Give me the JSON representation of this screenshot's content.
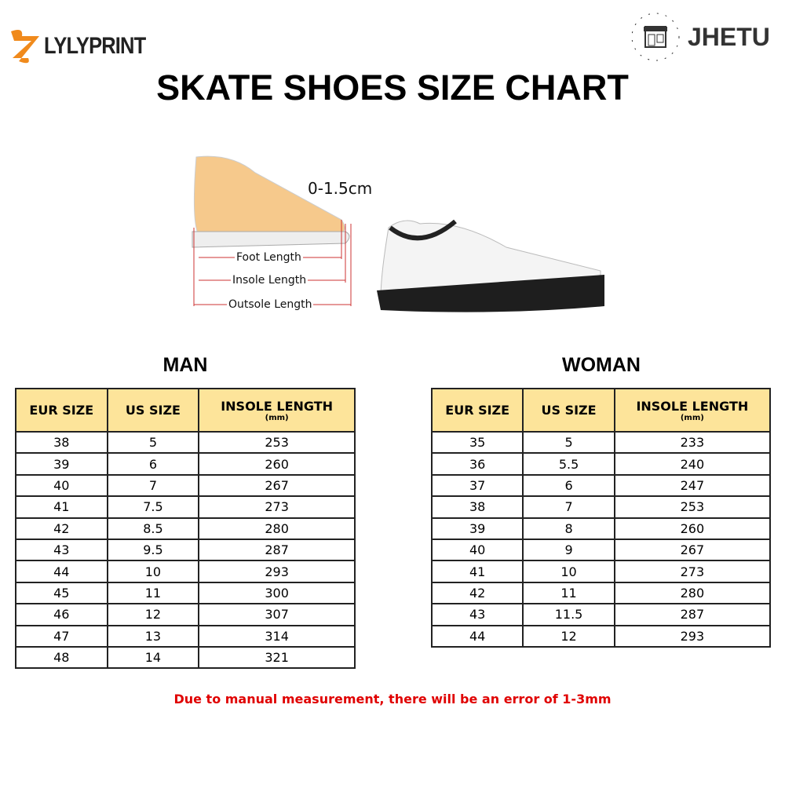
{
  "brand_left": "LYLYPRINT",
  "brand_right": "JHETU",
  "title": "SKATE SHOES SIZE CHART",
  "illustration": {
    "gap_label": "0-1.5cm",
    "foot_length": "Foot Length",
    "insole_length": "Insole Length",
    "outsole_length": "Outsole Length"
  },
  "colors": {
    "header_bg": "#FDE49A",
    "note": "#E00000",
    "logo_orange": "#F08A1C"
  },
  "man": {
    "title": "MAN",
    "headers": [
      "EUR SIZE",
      "US SIZE",
      "INSOLE LENGTH",
      "(mm)"
    ],
    "rows": [
      [
        "38",
        "5",
        "253"
      ],
      [
        "39",
        "6",
        "260"
      ],
      [
        "40",
        "7",
        "267"
      ],
      [
        "41",
        "7.5",
        "273"
      ],
      [
        "42",
        "8.5",
        "280"
      ],
      [
        "43",
        "9.5",
        "287"
      ],
      [
        "44",
        "10",
        "293"
      ],
      [
        "45",
        "11",
        "300"
      ],
      [
        "46",
        "12",
        "307"
      ],
      [
        "47",
        "13",
        "314"
      ],
      [
        "48",
        "14",
        "321"
      ]
    ]
  },
  "woman": {
    "title": "WOMAN",
    "headers": [
      "EUR SIZE",
      "US SIZE",
      "INSOLE LENGTH",
      "(mm)"
    ],
    "rows": [
      [
        "35",
        "5",
        "233"
      ],
      [
        "36",
        "5.5",
        "240"
      ],
      [
        "37",
        "6",
        "247"
      ],
      [
        "38",
        "7",
        "253"
      ],
      [
        "39",
        "8",
        "260"
      ],
      [
        "40",
        "9",
        "267"
      ],
      [
        "41",
        "10",
        "273"
      ],
      [
        "42",
        "11",
        "280"
      ],
      [
        "43",
        "11.5",
        "287"
      ],
      [
        "44",
        "12",
        "293"
      ]
    ]
  },
  "note": "Due to manual measurement, there will be an error of 1-3mm"
}
